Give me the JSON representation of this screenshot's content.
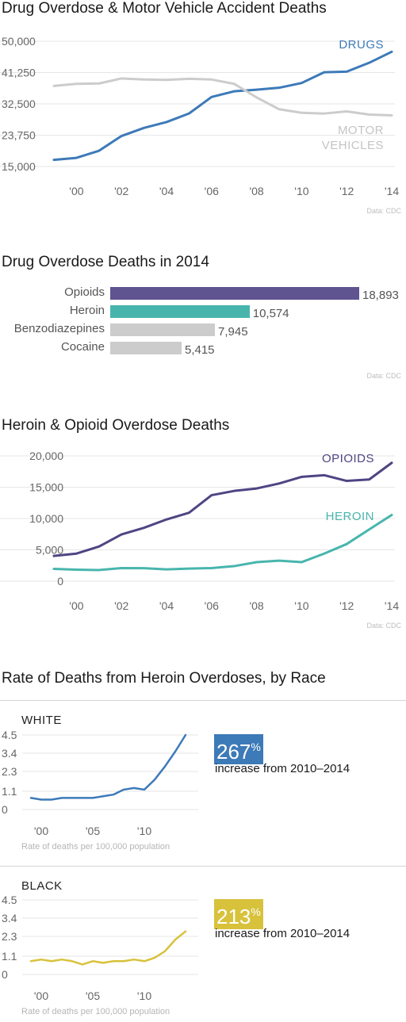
{
  "chart_data": [
    {
      "type": "line",
      "title": "Drug Overdose & Motor Vehicle Accident Deaths",
      "source": "Data: CDC",
      "x": [
        1999,
        2000,
        2001,
        2002,
        2003,
        2004,
        2005,
        2006,
        2007,
        2008,
        2009,
        2010,
        2011,
        2012,
        2013,
        2014
      ],
      "xticks": [
        "'00",
        "'02",
        "'04",
        "'06",
        "'08",
        "'10",
        "'12",
        "'14"
      ],
      "xtick_years": [
        2000,
        2002,
        2004,
        2006,
        2008,
        2010,
        2012,
        2014
      ],
      "yticks": [
        "15,000",
        "23,750",
        "32,500",
        "41,250",
        "50,000"
      ],
      "ytick_values": [
        15000,
        23750,
        32500,
        41250,
        50000
      ],
      "ylim": [
        15000,
        50000
      ],
      "series": [
        {
          "name": "DRUGS",
          "color": "#3d7ab8",
          "values": [
            16849,
            17415,
            19394,
            23518,
            25785,
            27424,
            29813,
            34425,
            36010,
            36450,
            37004,
            38329,
            41340,
            41502,
            43982,
            47055
          ]
        },
        {
          "name": "MOTOR VEHICLES",
          "color": "#cccccc",
          "values": [
            37500,
            38100,
            38200,
            39600,
            39300,
            39200,
            39500,
            39300,
            38100,
            34300,
            31000,
            30000,
            29800,
            30400,
            29500,
            29300
          ]
        }
      ]
    },
    {
      "type": "bar",
      "title": "Drug Overdose Deaths in 2014",
      "source": "Data: CDC",
      "categories": [
        "Opioids",
        "Heroin",
        "Benzodiazepines",
        "Cocaine"
      ],
      "values": [
        18893,
        10574,
        7945,
        5415
      ],
      "value_labels": [
        "18,893",
        "10,574",
        "7,945",
        "5,415"
      ],
      "colors": [
        "#5f5390",
        "#48b5ad",
        "#cccccc",
        "#cccccc"
      ],
      "xlim": [
        0,
        18893
      ]
    },
    {
      "type": "line",
      "title": "Heroin & Opioid Overdose Deaths",
      "source": "Data: CDC",
      "x": [
        1999,
        2000,
        2001,
        2002,
        2003,
        2004,
        2005,
        2006,
        2007,
        2008,
        2009,
        2010,
        2011,
        2012,
        2013,
        2014
      ],
      "xticks": [
        "'00",
        "'02",
        "'04",
        "'06",
        "'08",
        "'10",
        "'12",
        "'14"
      ],
      "xtick_years": [
        2000,
        2002,
        2004,
        2006,
        2008,
        2010,
        2012,
        2014
      ],
      "yticks": [
        "0",
        "5,000",
        "10,000",
        "15,000",
        "20,000"
      ],
      "ytick_values": [
        0,
        5000,
        10000,
        15000,
        20000
      ],
      "ylim": [
        0,
        20000
      ],
      "series": [
        {
          "name": "OPIOIDS",
          "color": "#4e4583",
          "values": [
            4030,
            4400,
            5528,
            7456,
            8517,
            9857,
            10928,
            13723,
            14408,
            14800,
            15597,
            16651,
            16917,
            16007,
            16235,
            18893
          ]
        },
        {
          "name": "HEROIN",
          "color": "#48b5ad",
          "values": [
            1960,
            1842,
            1779,
            2089,
            2080,
            1878,
            2009,
            2088,
            2399,
            3041,
            3278,
            3036,
            4397,
            5925,
            8257,
            10574
          ]
        }
      ]
    },
    {
      "type": "line",
      "title": "Rate of Deaths from Heroin Overdoses, by Race",
      "panels": [
        {
          "name": "WHITE",
          "color": "#3d7ab8",
          "x": [
            1999,
            2000,
            2001,
            2002,
            2003,
            2004,
            2005,
            2006,
            2007,
            2008,
            2009,
            2010,
            2011,
            2012,
            2013,
            2014
          ],
          "values": [
            0.7,
            0.6,
            0.6,
            0.7,
            0.7,
            0.7,
            0.7,
            0.8,
            0.9,
            1.2,
            1.3,
            1.2,
            1.8,
            2.6,
            3.5,
            4.5
          ],
          "increase_value": "267",
          "increase_unit": "%",
          "increase_text": "increase from 2010–2014"
        },
        {
          "name": "BLACK",
          "color": "#d8c23c",
          "x": [
            1999,
            2000,
            2001,
            2002,
            2003,
            2004,
            2005,
            2006,
            2007,
            2008,
            2009,
            2010,
            2011,
            2012,
            2013,
            2014
          ],
          "values": [
            0.8,
            0.9,
            0.8,
            0.9,
            0.8,
            0.6,
            0.8,
            0.7,
            0.8,
            0.8,
            0.9,
            0.8,
            1.0,
            1.4,
            2.1,
            2.6
          ],
          "increase_value": "213",
          "increase_unit": "%",
          "increase_text": "increase from 2010–2014"
        }
      ],
      "xticks": [
        "'00",
        "'05",
        "'10"
      ],
      "xtick_years": [
        2000,
        2005,
        2010
      ],
      "yticks": [
        "0",
        "1.1",
        "2.3",
        "3.4",
        "4.5"
      ],
      "ytick_values": [
        0,
        1.1,
        2.3,
        3.4,
        4.5
      ],
      "ylim": [
        0,
        4.5
      ],
      "xlabel": "Rate of deaths per 100,000 population"
    }
  ]
}
